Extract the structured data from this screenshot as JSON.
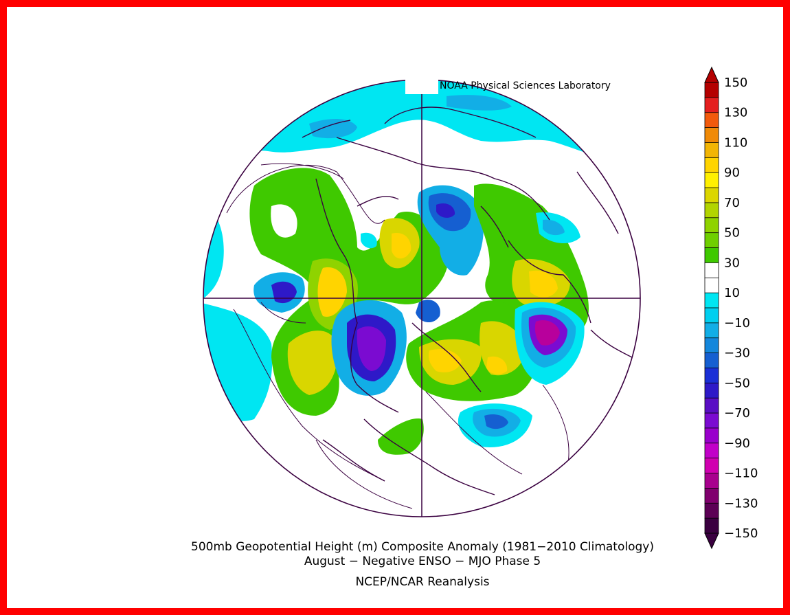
{
  "credit": "NOAA Physical Sciences Laboratory",
  "title_line1": "500mb Geopotential Height (m) Composite Anomaly (1981−2010 Climatology)",
  "title_line2": "August − Negative ENSO − MJO Phase 5",
  "title_line3": "NCEP/NCAR Reanalysis",
  "colorbar": {
    "labels": [
      "150",
      "130",
      "110",
      "90",
      "70",
      "50",
      "30",
      "10",
      "−10",
      "−30",
      "−50",
      "−70",
      "−90",
      "−110",
      "−130",
      "−150"
    ],
    "colors": [
      "#b40000",
      "#e41f1f",
      "#f25a0c",
      "#f08a07",
      "#f2b505",
      "#ffd400",
      "#fff000",
      "#dcd600",
      "#b2d400",
      "#8fd300",
      "#6fcf00",
      "#3fc900",
      "#ffffff",
      "#ffffff",
      "#00e6f2",
      "#00cfef",
      "#12aee6",
      "#1487dc",
      "#155fd1",
      "#1a2fd6",
      "#2e19c8",
      "#5a0ec4",
      "#7b0bd1",
      "#9900cc",
      "#c100c8",
      "#d000b0",
      "#a8008e",
      "#80006e",
      "#5c0055",
      "#3a0040"
    ]
  },
  "map": {
    "projection": "north-polar-stereographic",
    "field_colors": {
      "pos10": "#3fc900",
      "pos30": "#8fd300",
      "pos50": "#d9d600",
      "pos70": "#ffd400",
      "neg10": "#00e6f2",
      "neg30": "#12aee6",
      "neg50": "#155fd1",
      "neg70": "#2e19c8",
      "neg90": "#7b0bd1",
      "neg110": "#b8009c"
    }
  }
}
